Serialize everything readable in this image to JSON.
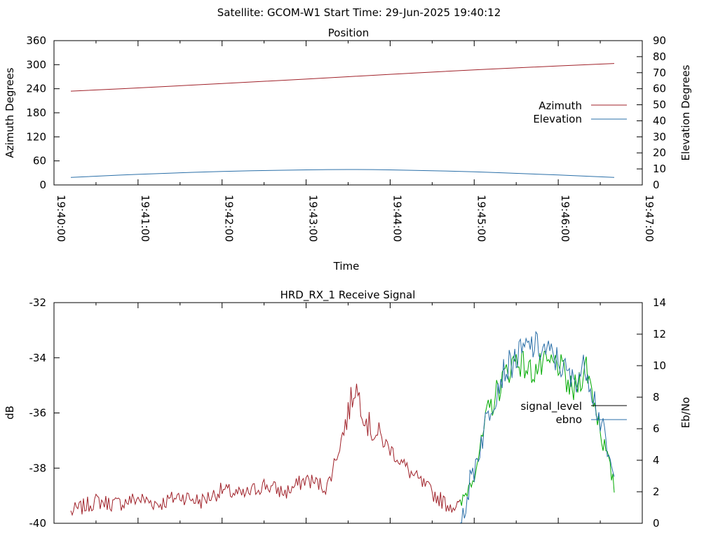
{
  "header": {
    "title": "Satellite: GCOM-W1    Start Time: 29-Jun-2025 19:40:12"
  },
  "colors": {
    "azimuth": "#a0222a",
    "elevation": "#2a6fa8",
    "signal_level": "#000000",
    "ebno": "#2a6fa8",
    "signal_trace_low": "#a0222a",
    "signal_trace_high": "#00aa00"
  },
  "chart_data": [
    {
      "type": "line",
      "title": "Position",
      "xlabel": "Time",
      "ylabel": "Azimuth Degrees",
      "y2label": "Elevation Degrees",
      "xlim": [
        "19:40:00",
        "19:47:00"
      ],
      "ylim": [
        0,
        360
      ],
      "y2lim": [
        0,
        90
      ],
      "x_ticks": [
        "19:40:00",
        "19:41:00",
        "19:42:00",
        "19:43:00",
        "19:44:00",
        "19:45:00",
        "19:46:00",
        "19:47:00"
      ],
      "y_ticks": [
        "0",
        "60",
        "120",
        "180",
        "240",
        "300",
        "360"
      ],
      "y2_ticks": [
        "0",
        "10",
        "20",
        "30",
        "40",
        "50",
        "60",
        "70",
        "80",
        "90"
      ],
      "legend_position": "right",
      "grid": false,
      "series": [
        {
          "name": "Azimuth",
          "axis": "y",
          "x": [
            "19:40:12",
            "19:41:00",
            "19:42:00",
            "19:43:00",
            "19:44:00",
            "19:45:00",
            "19:46:00",
            "19:46:40"
          ],
          "values": [
            234,
            242,
            253,
            264,
            276,
            287,
            297,
            303
          ]
        },
        {
          "name": "Elevation",
          "axis": "y2",
          "x": [
            "19:40:12",
            "19:41:00",
            "19:42:00",
            "19:43:00",
            "19:43:30",
            "19:44:00",
            "19:45:00",
            "19:46:00",
            "19:46:40"
          ],
          "values": [
            4.7,
            6.6,
            8.4,
            9.4,
            9.6,
            9.4,
            8.2,
            6.2,
            4.7
          ]
        }
      ]
    },
    {
      "type": "line",
      "title": "HRD_RX_1 Receive Signal",
      "xlabel": "",
      "ylabel": "dB",
      "y2label": "Eb/No",
      "xlim": [
        "19:40:00",
        "19:47:00"
      ],
      "ylim": [
        -40,
        -32
      ],
      "y2lim": [
        0,
        14
      ],
      "y_ticks": [
        "-32",
        "-34",
        "-36",
        "-38",
        "-40"
      ],
      "y2_ticks": [
        "0",
        "2",
        "4",
        "6",
        "8",
        "10",
        "12",
        "14"
      ],
      "legend_position": "right",
      "grid": false,
      "series": [
        {
          "name": "signal_level",
          "axis": "y",
          "x": [
            "19:40:12",
            "19:40:30",
            "19:40:45",
            "19:41:00",
            "19:41:15",
            "19:41:30",
            "19:41:45",
            "19:42:00",
            "19:42:15",
            "19:42:30",
            "19:42:45",
            "19:43:00",
            "19:43:15",
            "19:43:25",
            "19:43:35",
            "19:43:45",
            "19:44:00",
            "19:44:15",
            "19:44:30",
            "19:44:40",
            "19:44:50",
            "19:45:00",
            "19:45:10",
            "19:45:20",
            "19:45:30",
            "19:45:40",
            "19:45:50",
            "19:46:00",
            "19:46:10",
            "19:46:20",
            "19:46:30",
            "19:46:40"
          ],
          "values": [
            -39.6,
            -39.2,
            -39.3,
            -39.1,
            -39.3,
            -39.0,
            -39.2,
            -38.8,
            -39.0,
            -38.6,
            -38.9,
            -38.4,
            -38.7,
            -37.0,
            -35.0,
            -36.5,
            -37.3,
            -38.2,
            -38.9,
            -39.3,
            -39.4,
            -38.2,
            -36.0,
            -34.8,
            -34.0,
            -34.5,
            -34.3,
            -34.2,
            -35.3,
            -34.3,
            -36.5,
            -38.7
          ],
          "segment_color_rule": "red until ~19:44:50, then green"
        },
        {
          "name": "ebno",
          "axis": "y2",
          "x": [
            "19:44:50",
            "19:45:00",
            "19:45:10",
            "19:45:20",
            "19:45:30",
            "19:45:40",
            "19:45:50",
            "19:46:00",
            "19:46:10",
            "19:46:20",
            "19:46:30",
            "19:46:40"
          ],
          "values": [
            0.1,
            3.5,
            7.0,
            9.5,
            10.5,
            11.3,
            11.0,
            10.3,
            9.0,
            10.0,
            6.5,
            2.5
          ]
        }
      ]
    }
  ]
}
